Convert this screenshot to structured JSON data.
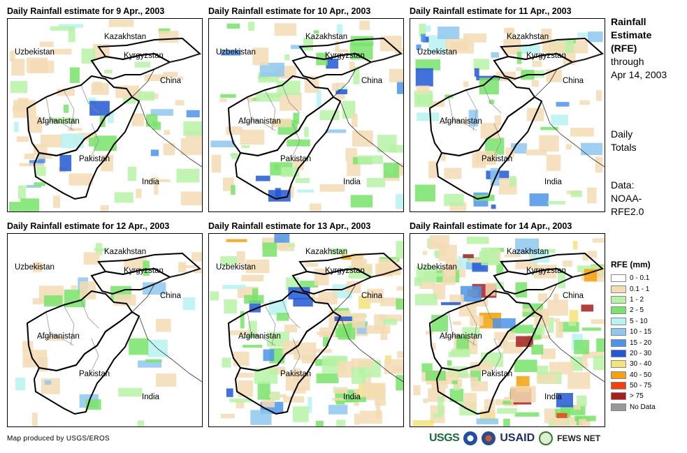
{
  "panels": [
    {
      "title": "Daily Rainfall estimate for 9 Apr., 2003",
      "intensity": 1
    },
    {
      "title": "Daily Rainfall estimate for 10 Apr., 2003",
      "intensity": 1
    },
    {
      "title": "Daily Rainfall estimate for 11 Apr., 2003",
      "intensity": 1
    },
    {
      "title": "Daily Rainfall estimate for 12 Apr., 2003",
      "intensity": 0
    },
    {
      "title": "Daily Rainfall estimate for 13 Apr., 2003",
      "intensity": 2
    },
    {
      "title": "Daily Rainfall estimate for 14 Apr., 2003",
      "intensity": 3
    }
  ],
  "map_labels": {
    "kazakhstan": "Kazakhstan",
    "uzbekistan": "Uzbekistan",
    "kyrgyzstan": "Kyrgyzstan",
    "china": "China",
    "afghanistan": "Afghanistan",
    "pakistan": "Pakistan",
    "india": "India"
  },
  "side_info": {
    "title_line1": "Rainfall",
    "title_line2": "Estimate",
    "title_line3": "(RFE)",
    "through_line": "through",
    "date_line": "Apr 14, 2003",
    "totals_line1": "Daily",
    "totals_line2": "Totals",
    "data_line1": "Data:",
    "data_line2": "NOAA-",
    "data_line3": "RFE2.0"
  },
  "legend": {
    "title": "RFE (mm)",
    "items": [
      {
        "label": "0 - 0.1",
        "color": "#ffffff"
      },
      {
        "label": "0.1 - 1",
        "color": "#f3dcb4"
      },
      {
        "label": "1 - 2",
        "color": "#b7f2a7"
      },
      {
        "label": "2 - 5",
        "color": "#79e36b"
      },
      {
        "label": "5 - 10",
        "color": "#b8f2f2"
      },
      {
        "label": "10 - 15",
        "color": "#8ec8f0"
      },
      {
        "label": "15 - 20",
        "color": "#4d94e8"
      },
      {
        "label": "20 - 30",
        "color": "#2158d4"
      },
      {
        "label": "30 - 40",
        "color": "#f4e27a"
      },
      {
        "label": "40 - 50",
        "color": "#f6a10f"
      },
      {
        "label": "50 - 75",
        "color": "#f2400e"
      },
      {
        "label": "> 75",
        "color": "#a51f1f"
      },
      {
        "label": "No Data",
        "color": "#999999"
      }
    ]
  },
  "credit": "Map produced by USGS/EROS",
  "logos": {
    "usgs": "USGS",
    "usaid": "USAID",
    "fews": "FEWS NET"
  }
}
